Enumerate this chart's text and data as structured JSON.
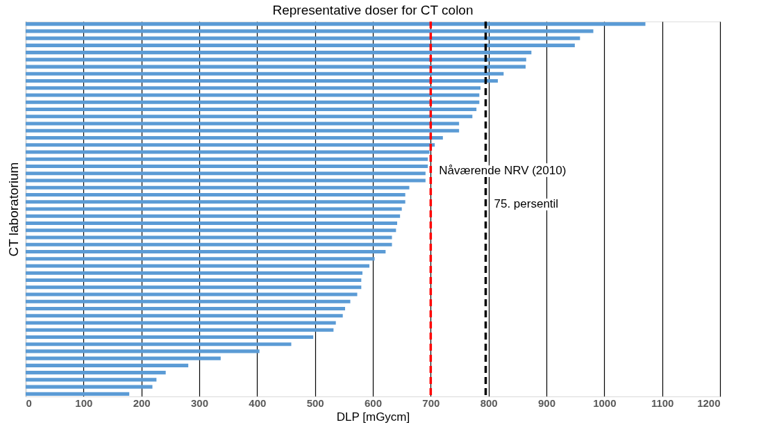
{
  "chart_data": {
    "type": "bar",
    "orientation": "horizontal",
    "title": "Representative doser for CT colon",
    "xlabel": "DLP [mGycm]",
    "ylabel": "CT laboratorium",
    "categories": [
      null,
      null,
      null,
      null,
      null,
      null,
      null,
      null,
      null,
      null,
      null,
      null,
      null,
      null,
      null,
      null,
      null,
      null,
      null,
      null,
      null,
      null,
      null,
      null,
      null,
      null,
      null,
      null,
      null,
      null,
      null,
      null,
      null,
      null,
      null,
      null,
      null,
      null,
      null,
      null,
      null,
      null,
      null,
      null,
      null,
      null,
      null,
      null,
      null,
      null,
      null,
      null,
      null
    ],
    "values": [
      1071,
      981,
      958,
      949,
      874,
      865,
      864,
      826,
      816,
      786,
      784,
      784,
      779,
      772,
      749,
      749,
      721,
      707,
      698,
      695,
      695,
      691,
      691,
      663,
      656,
      656,
      650,
      647,
      642,
      640,
      633,
      633,
      622,
      603,
      594,
      582,
      580,
      580,
      573,
      561,
      552,
      548,
      536,
      532,
      497,
      459,
      404,
      337,
      281,
      242,
      226,
      219,
      179
    ],
    "color": "#5b9bd5",
    "xlim": [
      0,
      1200
    ],
    "xticks": [
      0,
      100,
      200,
      300,
      400,
      500,
      600,
      700,
      800,
      900,
      1000,
      1100,
      1200
    ],
    "grid": "x",
    "tick_labels": "x",
    "ref_lines": [
      {
        "axis": "x",
        "value": 700,
        "label": "Nåværende NRV (2010)",
        "color": "#ff0000",
        "line_style": "dashed"
      },
      {
        "axis": "x",
        "value": 795,
        "label": "75. persentil",
        "color": "#000000",
        "line_style": "dashed"
      }
    ]
  }
}
